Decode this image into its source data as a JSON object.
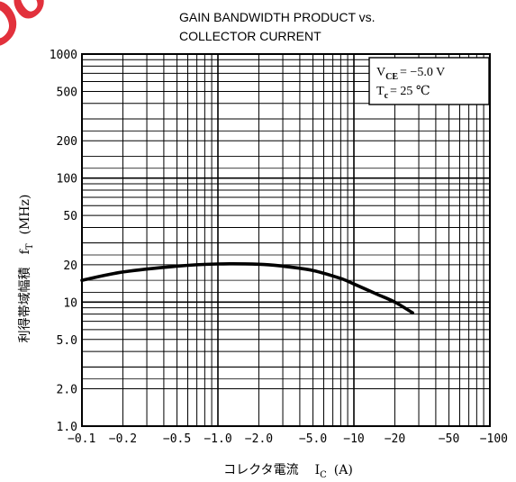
{
  "chart_data": {
    "type": "line",
    "title_line1": "GAIN BANDWIDTH PRODUCT vs.",
    "title_line2": "COLLECTOR CURRENT",
    "ylabel_jp": "利得帯域幅積",
    "ylabel_sym": "f",
    "ylabel_sub": "T",
    "ylabel_unit": "(MHz)",
    "xlabel_jp": "コレクタ電流",
    "xlabel_sym": "I",
    "xlabel_sub": "C",
    "xlabel_unit": "(A)",
    "x_scale": "log",
    "y_scale": "log",
    "xlim": [
      -0.1,
      -100
    ],
    "ylim": [
      1.0,
      1000
    ],
    "x_tick_labels": [
      {
        "value": -0.1,
        "label": "−0.1"
      },
      {
        "value": -0.2,
        "label": "−0.2"
      },
      {
        "value": -0.5,
        "label": "−0.5"
      },
      {
        "value": -1.0,
        "label": "−1.0"
      },
      {
        "value": -2.0,
        "label": "−2.0"
      },
      {
        "value": -5.0,
        "label": "−5.0"
      },
      {
        "value": -10,
        "label": "−10"
      },
      {
        "value": -20,
        "label": "−20"
      },
      {
        "value": -50,
        "label": "−50"
      },
      {
        "value": -100,
        "label": "−100"
      }
    ],
    "y_tick_labels": [
      {
        "value": 1.0,
        "label": "1.0"
      },
      {
        "value": 2.0,
        "label": "2.0"
      },
      {
        "value": 5.0,
        "label": "5.0"
      },
      {
        "value": 10,
        "label": "10"
      },
      {
        "value": 20,
        "label": "20"
      },
      {
        "value": 50,
        "label": "50"
      },
      {
        "value": 100,
        "label": "100"
      },
      {
        "value": 200,
        "label": "200"
      },
      {
        "value": 500,
        "label": "500"
      },
      {
        "value": 1000,
        "label": "1000"
      }
    ],
    "conditions": {
      "line1_sym": "V",
      "line1_sub": "CE",
      "line1_val": "= −5.0  V",
      "line2_sym": "T",
      "line2_sub": "c",
      "line2_val": "= 25  ℃"
    },
    "grid": true,
    "series": [
      {
        "x": [
          -0.1,
          -0.2,
          -0.5,
          -1.0,
          -2.0,
          -3.0,
          -5.0,
          -8.0,
          -10,
          -15,
          -20,
          -27
        ],
        "y": [
          15,
          17.5,
          19.5,
          20.3,
          20.2,
          19.5,
          18,
          15.5,
          14,
          11.5,
          10,
          8.2
        ]
      }
    ],
    "colors": {
      "line": "#000000",
      "grid": "#000000",
      "watermark": "#e0202c"
    }
  },
  "watermark": {
    "text": "Oou..."
  }
}
